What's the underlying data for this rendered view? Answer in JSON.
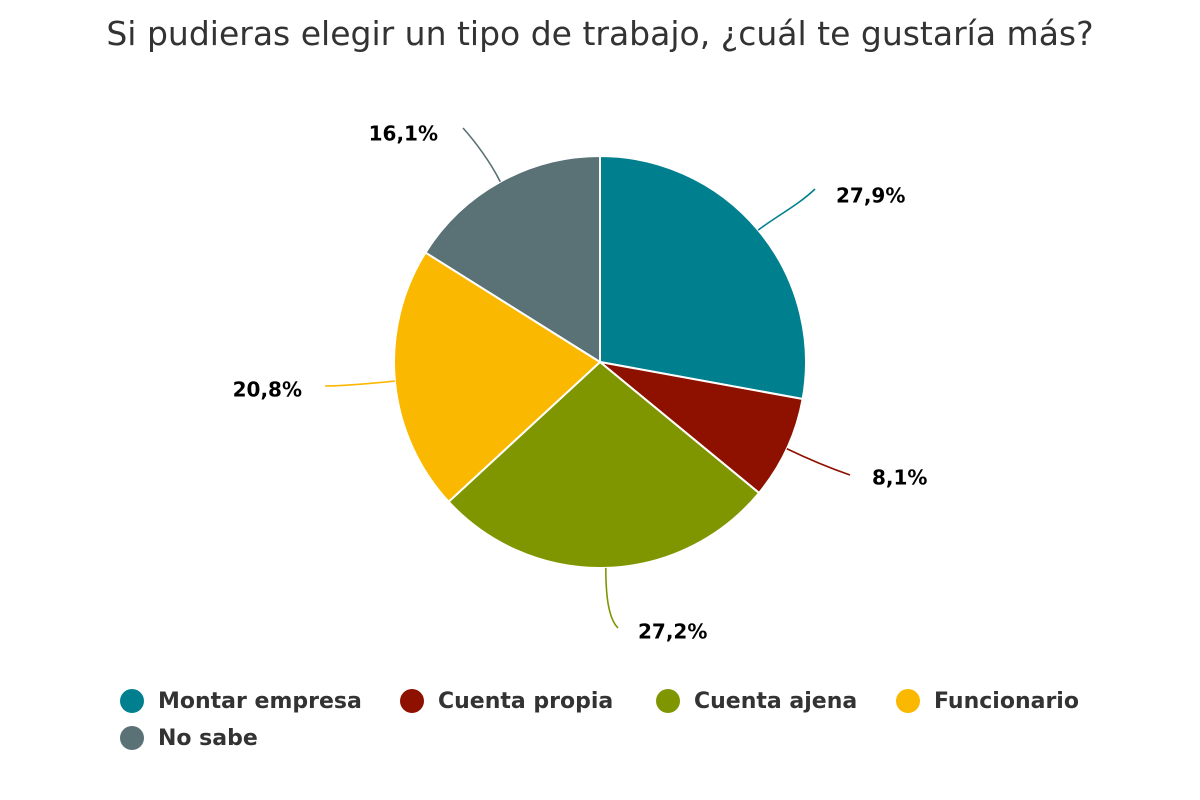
{
  "chart_data": {
    "type": "pie",
    "title": "Si pudieras elegir un tipo de trabajo, ¿cuál te gustaría más?",
    "start_angle_deg": 0,
    "slices": [
      {
        "name": "Montar empresa",
        "value": 27.9,
        "label": "27,9%",
        "color": "#00808F"
      },
      {
        "name": "Cuenta propia",
        "value": 8.1,
        "label": "8,1%",
        "color": "#8E1100"
      },
      {
        "name": "Cuenta ajena",
        "value": 27.2,
        "label": "27,2%",
        "color": "#7F9600"
      },
      {
        "name": "Funcionario",
        "value": 20.8,
        "label": "20,8%",
        "color": "#FBB800"
      },
      {
        "name": "No sabe",
        "value": 16.1,
        "label": "16,1%",
        "color": "#5A7175"
      }
    ],
    "legend_position": "bottom"
  }
}
